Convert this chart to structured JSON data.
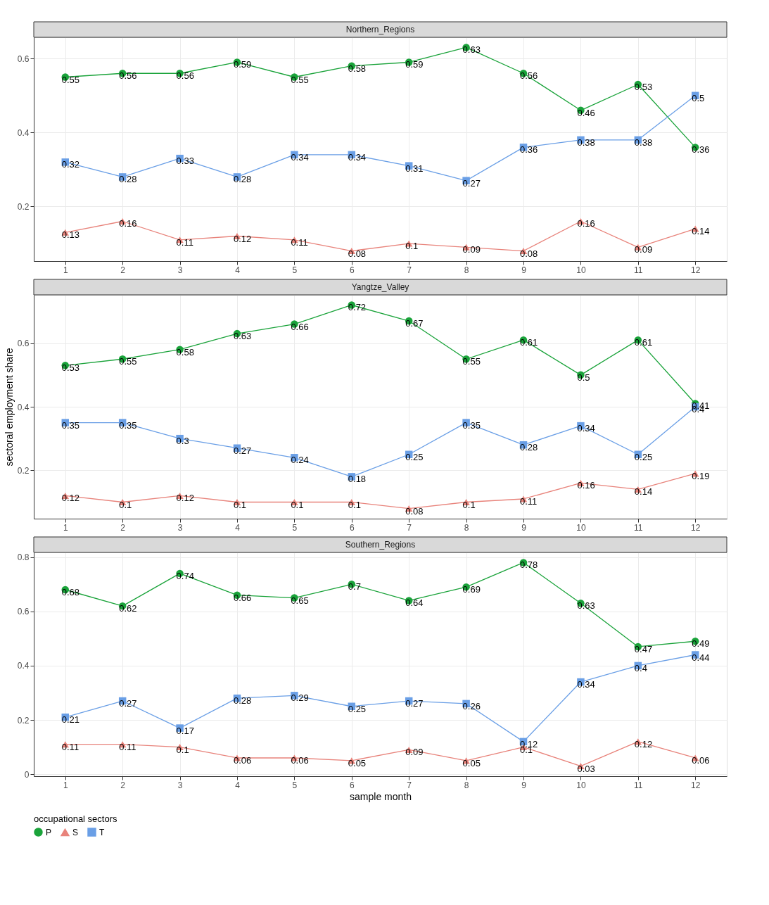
{
  "chart_data": [
    {
      "type": "line",
      "title": "Northern_Regions",
      "legend_title": "occupational sectors",
      "legend": "bottom",
      "x": [
        1,
        2,
        3,
        4,
        5,
        6,
        7,
        8,
        9,
        10,
        11,
        12
      ],
      "xlim": [
        0.45,
        12.55
      ],
      "xticks": [
        1,
        2,
        3,
        4,
        5,
        6,
        7,
        8,
        9,
        10,
        11,
        12
      ],
      "ylim": [
        0.0525,
        0.6575
      ],
      "yticks": [
        0.2,
        0.4,
        0.6
      ],
      "grid": true,
      "data_labels": true,
      "series": [
        {
          "name": "P",
          "color": "#1aa33a",
          "marker": "circle",
          "values": [
            0.55,
            0.56,
            0.56,
            0.59,
            0.55,
            0.58,
            0.59,
            0.63,
            0.56,
            0.46,
            0.53,
            0.36
          ]
        },
        {
          "name": "S",
          "color": "#e8837b",
          "marker": "triangle",
          "values": [
            0.13,
            0.16,
            0.11,
            0.12,
            0.11,
            0.08,
            0.1,
            0.09,
            0.08,
            0.16,
            0.09,
            0.14
          ]
        },
        {
          "name": "T",
          "color": "#6a9fe6",
          "marker": "square",
          "values": [
            0.32,
            0.28,
            0.33,
            0.28,
            0.34,
            0.34,
            0.31,
            0.27,
            0.36,
            0.38,
            0.38,
            0.5
          ]
        }
      ]
    },
    {
      "type": "line",
      "title": "Yangtze_Valley",
      "ylabel": "sectoral employment share",
      "x": [
        1,
        2,
        3,
        4,
        5,
        6,
        7,
        8,
        9,
        10,
        11,
        12
      ],
      "xlim": [
        0.45,
        12.55
      ],
      "xticks": [
        1,
        2,
        3,
        4,
        5,
        6,
        7,
        8,
        9,
        10,
        11,
        12
      ],
      "ylim": [
        0.048,
        0.752
      ],
      "yticks": [
        0.2,
        0.4,
        0.6
      ],
      "grid": true,
      "data_labels": true,
      "series": [
        {
          "name": "P",
          "color": "#1aa33a",
          "marker": "circle",
          "values": [
            0.53,
            0.55,
            0.58,
            0.63,
            0.66,
            0.72,
            0.67,
            0.55,
            0.61,
            0.5,
            0.61,
            0.41
          ]
        },
        {
          "name": "S",
          "color": "#e8837b",
          "marker": "triangle",
          "values": [
            0.12,
            0.1,
            0.12,
            0.1,
            0.1,
            0.1,
            0.08,
            0.1,
            0.11,
            0.16,
            0.14,
            0.19
          ]
        },
        {
          "name": "T",
          "color": "#6a9fe6",
          "marker": "square",
          "values": [
            0.35,
            0.35,
            0.3,
            0.27,
            0.24,
            0.18,
            0.25,
            0.35,
            0.28,
            0.34,
            0.25,
            0.4
          ]
        }
      ]
    },
    {
      "type": "line",
      "title": "Southern_Regions",
      "xlabel": "sample month",
      "x": [
        1,
        2,
        3,
        4,
        5,
        6,
        7,
        8,
        9,
        10,
        11,
        12
      ],
      "xlim": [
        0.45,
        12.55
      ],
      "xticks": [
        1,
        2,
        3,
        4,
        5,
        6,
        7,
        8,
        9,
        10,
        11,
        12
      ],
      "ylim": [
        -0.0075,
        0.8175
      ],
      "yticks": [
        0.0,
        0.2,
        0.4,
        0.6,
        0.8
      ],
      "grid": true,
      "data_labels": true,
      "series": [
        {
          "name": "P",
          "color": "#1aa33a",
          "marker": "circle",
          "values": [
            0.68,
            0.62,
            0.74,
            0.66,
            0.65,
            0.7,
            0.64,
            0.69,
            0.78,
            0.63,
            0.47,
            0.49
          ]
        },
        {
          "name": "S",
          "color": "#e8837b",
          "marker": "triangle",
          "values": [
            0.11,
            0.11,
            0.1,
            0.06,
            0.06,
            0.05,
            0.09,
            0.05,
            0.1,
            0.03,
            0.12,
            0.06
          ]
        },
        {
          "name": "T",
          "color": "#6a9fe6",
          "marker": "square",
          "values": [
            0.21,
            0.27,
            0.17,
            0.28,
            0.29,
            0.25,
            0.27,
            0.26,
            0.12,
            0.34,
            0.4,
            0.44
          ]
        }
      ]
    }
  ]
}
